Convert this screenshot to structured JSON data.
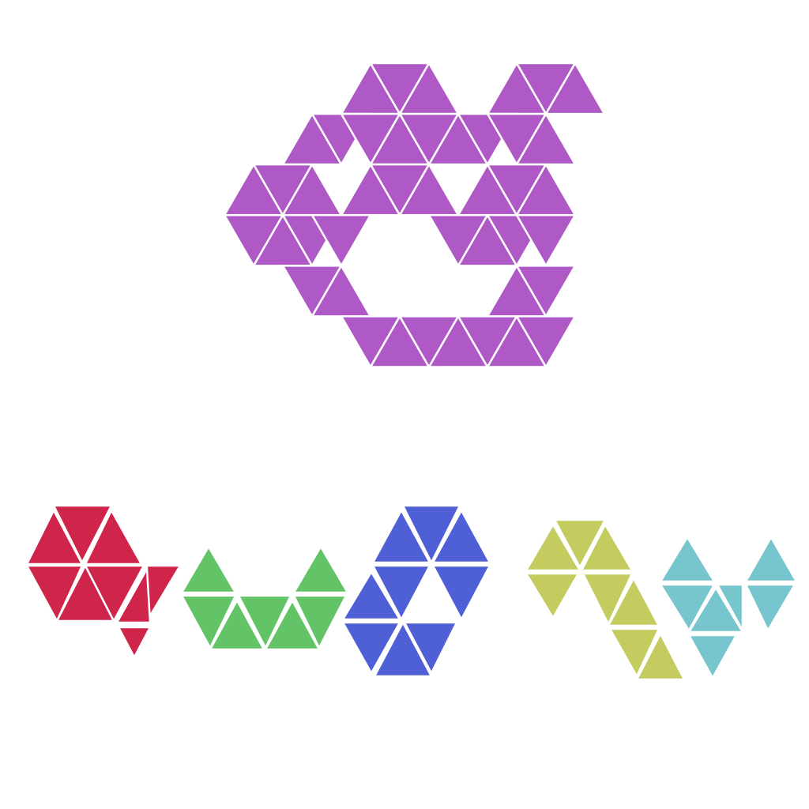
{
  "puzzle": {
    "type": "triangle-grid-polyiamond",
    "target": {
      "name": "target-shape",
      "color": "#ae59c6",
      "filled_cells": [
        [
          0,
          2,
          "u"
        ],
        [
          0,
          3,
          "d"
        ],
        [
          0,
          4,
          "u"
        ],
        [
          0,
          7,
          "u"
        ],
        [
          0,
          8,
          "d"
        ],
        [
          0,
          9,
          "u"
        ],
        [
          1,
          1,
          "u"
        ],
        [
          1,
          2,
          "d"
        ],
        [
          1,
          3,
          "d"
        ],
        [
          1,
          4,
          "u"
        ],
        [
          1,
          5,
          "d"
        ],
        [
          1,
          6,
          "u"
        ],
        [
          1,
          7,
          "d"
        ],
        [
          1,
          8,
          "d"
        ],
        [
          1,
          9,
          "u"
        ],
        [
          2,
          0,
          "u"
        ],
        [
          2,
          1,
          "d"
        ],
        [
          2,
          2,
          "u"
        ],
        [
          2,
          4,
          "u"
        ],
        [
          2,
          5,
          "d"
        ],
        [
          2,
          6,
          "u"
        ],
        [
          2,
          8,
          "u"
        ],
        [
          2,
          9,
          "d"
        ],
        [
          2,
          10,
          "u"
        ],
        [
          3,
          0,
          "d"
        ],
        [
          3,
          1,
          "u"
        ],
        [
          3,
          2,
          "d"
        ],
        [
          3,
          3,
          "d"
        ],
        [
          3,
          7,
          "d"
        ],
        [
          3,
          8,
          "u"
        ],
        [
          3,
          9,
          "d"
        ],
        [
          3,
          10,
          "d"
        ],
        [
          4,
          1,
          "d"
        ],
        [
          4,
          2,
          "u"
        ],
        [
          4,
          8,
          "u"
        ],
        [
          4,
          9,
          "d"
        ],
        [
          5,
          2,
          "d"
        ],
        [
          5,
          3,
          "u"
        ],
        [
          5,
          4,
          "d"
        ],
        [
          5,
          5,
          "u"
        ],
        [
          5,
          6,
          "d"
        ],
        [
          5,
          7,
          "u"
        ],
        [
          5,
          8,
          "d"
        ]
      ]
    },
    "pieces": [
      {
        "name": "red-piece",
        "color": "#d0254a",
        "cell_count": 9
      },
      {
        "name": "green-piece",
        "color": "#62c466",
        "cell_count": 7
      },
      {
        "name": "blue-piece",
        "color": "#4f60d6",
        "cell_count": 9
      },
      {
        "name": "yellow-piece",
        "color": "#c4cc5f",
        "cell_count": 8
      },
      {
        "name": "cyan-piece",
        "color": "#77c6ce",
        "cell_count": 7
      }
    ]
  }
}
